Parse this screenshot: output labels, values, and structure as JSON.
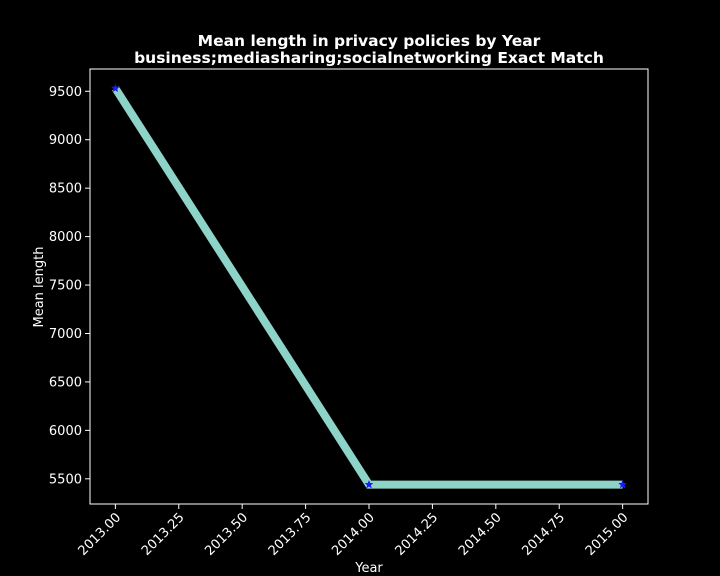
{
  "chart_data": {
    "type": "line",
    "title": "Mean length in privacy policies by Year",
    "subtitle": "business;mediasharing;socialnetworking Exact Match",
    "xlabel": "Year",
    "ylabel": "Mean length",
    "x": [
      2013,
      2014,
      2015
    ],
    "series": [
      {
        "values": [
          9530,
          5440,
          5440
        ],
        "color": "#8dd3c7",
        "marker_color": "#1a1aff",
        "marker": "star"
      }
    ],
    "xlim": [
      2012.9,
      2015.1
    ],
    "ylim": [
      5240,
      9730
    ],
    "xticks": [
      2013.0,
      2013.25,
      2013.5,
      2013.75,
      2014.0,
      2014.25,
      2014.5,
      2014.75,
      2015.0
    ],
    "xtick_labels": [
      "2013.00",
      "2013.25",
      "2013.50",
      "2013.75",
      "2014.00",
      "2014.25",
      "2014.50",
      "2014.75",
      "2015.00"
    ],
    "yticks": [
      5500,
      6000,
      6500,
      7000,
      7500,
      8000,
      8500,
      9000,
      9500
    ],
    "ytick_labels": [
      "5500",
      "6000",
      "6500",
      "7000",
      "7500",
      "8000",
      "8500",
      "9000",
      "9500"
    ],
    "grid": false,
    "background": "#000000",
    "axis_color": "#ffffff"
  }
}
